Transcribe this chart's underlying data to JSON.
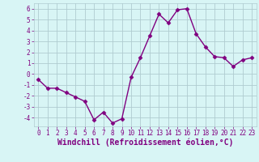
{
  "x": [
    0,
    1,
    2,
    3,
    4,
    5,
    6,
    7,
    8,
    9,
    10,
    11,
    12,
    13,
    14,
    15,
    16,
    17,
    18,
    19,
    20,
    21,
    22,
    23
  ],
  "y": [
    -0.5,
    -1.3,
    -1.3,
    -1.7,
    -2.1,
    -2.5,
    -4.2,
    -3.5,
    -4.5,
    -4.1,
    -0.3,
    1.5,
    3.5,
    5.5,
    4.7,
    5.9,
    6.0,
    3.7,
    2.5,
    1.6,
    1.5,
    0.7,
    1.3,
    1.5
  ],
  "line_color": "#800080",
  "marker": "D",
  "marker_size": 2.5,
  "bg_color": "#d8f5f5",
  "grid_color": "#b0ccd0",
  "axis_label_color": "#800080",
  "xlabel": "Windchill (Refroidissement éolien,°C)",
  "ylim": [
    -4.8,
    6.5
  ],
  "xlim": [
    -0.5,
    23.5
  ],
  "yticks": [
    -4,
    -3,
    -2,
    -1,
    0,
    1,
    2,
    3,
    4,
    5,
    6
  ],
  "xticks": [
    0,
    1,
    2,
    3,
    4,
    5,
    6,
    7,
    8,
    9,
    10,
    11,
    12,
    13,
    14,
    15,
    16,
    17,
    18,
    19,
    20,
    21,
    22,
    23
  ],
  "tick_label_size": 5.5,
  "xlabel_size": 7.0,
  "grid_linewidth": 0.6,
  "line_width": 1.0
}
